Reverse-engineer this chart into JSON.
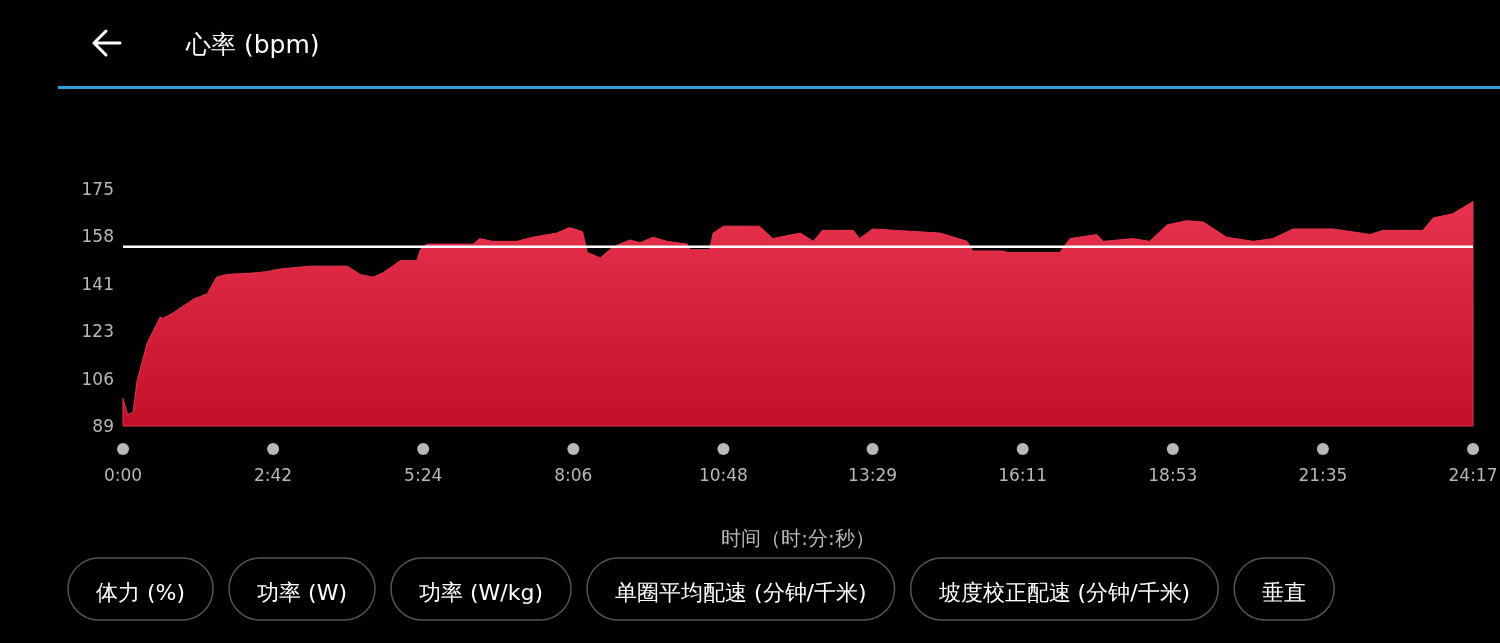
{
  "chart_data": {
    "type": "area",
    "title": "心率 (bpm)",
    "xlabel": "时间（时:分:秒）",
    "x": [
      0,
      5,
      11,
      15,
      26,
      40,
      43,
      54,
      76,
      91,
      101,
      112,
      140,
      155,
      170,
      202,
      242,
      256,
      270,
      280,
      291,
      299,
      317,
      321,
      328,
      378,
      385,
      399,
      425,
      442,
      468,
      482,
      496,
      501,
      515,
      529,
      547,
      558,
      572,
      587,
      609,
      612,
      633,
      637,
      648,
      687,
      701,
      731,
      745,
      755,
      788,
      795,
      809,
      882,
      911,
      917,
      950,
      954,
      990,
      1011,
      1022,
      1051,
      1058,
      1090,
      1108,
      1127,
      1148,
      1166,
      1191,
      1220,
      1241,
      1263,
      1306,
      1346,
      1360,
      1403,
      1414,
      1435,
      1457
    ],
    "values": [
      99,
      93,
      94,
      105,
      119,
      128.5,
      128,
      130,
      135,
      137,
      143,
      144,
      144.5,
      145,
      146,
      147,
      147,
      144,
      143,
      144.5,
      147,
      149,
      149,
      153,
      155,
      155,
      157,
      156,
      156,
      157.5,
      159,
      161,
      159.5,
      152,
      150,
      154,
      156.5,
      155.5,
      157.5,
      156,
      155,
      153,
      153,
      159,
      161.5,
      161.5,
      157,
      159,
      156,
      160,
      160,
      157,
      160.5,
      159,
      156,
      152.5,
      152.5,
      152,
      152,
      152,
      157,
      158.5,
      156,
      157,
      156,
      162,
      163.5,
      163,
      157.5,
      156,
      157,
      160.5,
      160.5,
      158.5,
      160,
      160,
      164.5,
      166,
      170.5
    ],
    "color": "#e8334f",
    "xlim": [
      0,
      1457
    ],
    "xticks": [
      {
        "value": 0,
        "label": "0:00"
      },
      {
        "value": 162,
        "label": "2:42"
      },
      {
        "value": 324,
        "label": "5:24"
      },
      {
        "value": 486,
        "label": "8:06"
      },
      {
        "value": 648,
        "label": "10:48"
      },
      {
        "value": 809,
        "label": "13:29"
      },
      {
        "value": 971,
        "label": "16:11"
      },
      {
        "value": 1133,
        "label": "18:53"
      },
      {
        "value": 1295,
        "label": "21:35"
      },
      {
        "value": 1457,
        "label": "24:17"
      }
    ],
    "ylim": [
      89,
      175
    ],
    "yticks": [
      89,
      {
        "value": 106.2,
        "label": "106"
      },
      {
        "value": 123.4,
        "label": "123"
      },
      {
        "value": 140.6,
        "label": "141"
      },
      {
        "value": 157.8,
        "label": "158"
      },
      175
    ],
    "ref_lines": [
      {
        "axis": "y",
        "value": 154,
        "color": "#ffffff"
      }
    ],
    "annotations": [
      "体力 (%)",
      "功率 (W)",
      "功率 (W/kg)",
      "单圈平均配速 (分钟/千米)",
      "坡度校正配速 (分钟/千米)",
      "垂直"
    ]
  }
}
